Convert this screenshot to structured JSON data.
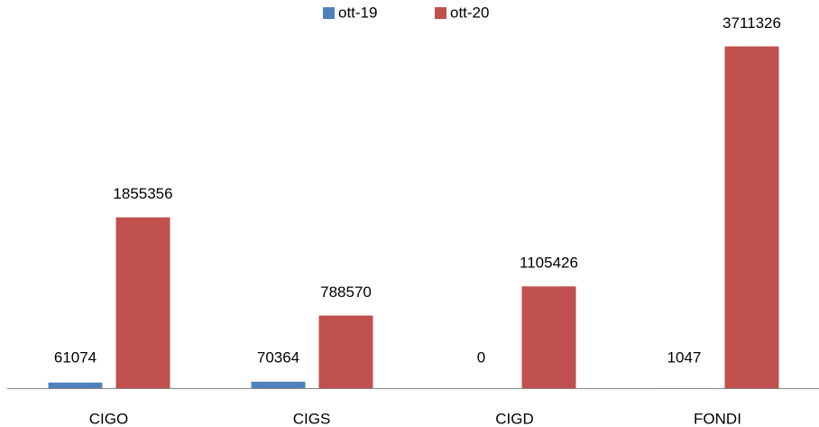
{
  "chart_data": {
    "type": "bar",
    "categories": [
      "CIGO",
      "CIGS",
      "CIGD",
      "FONDI"
    ],
    "series": [
      {
        "name": "ott-19",
        "color": "#4f81bd",
        "values": [
          61074,
          70364,
          0,
          1047
        ]
      },
      {
        "name": "ott-20",
        "color": "#c0504d",
        "values": [
          1855356,
          788570,
          1105426,
          3711326
        ]
      }
    ],
    "ylim": [
      0,
      4000000
    ],
    "legend": "top"
  }
}
